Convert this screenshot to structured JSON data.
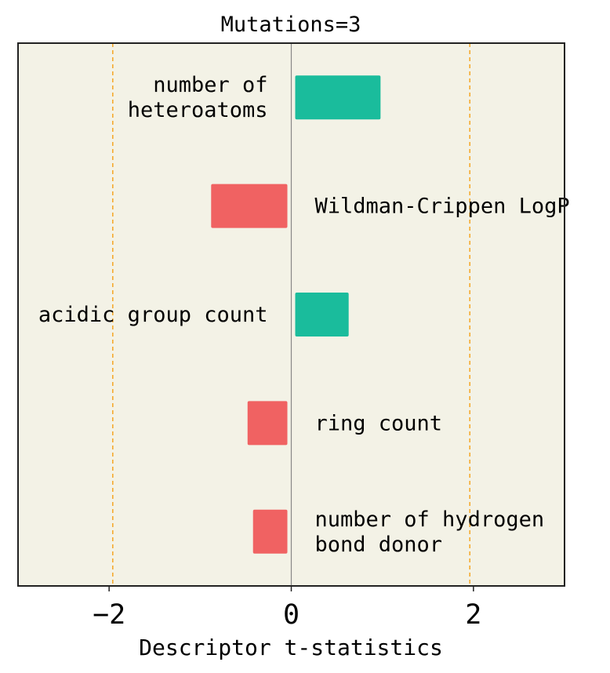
{
  "chart_data": {
    "type": "bar",
    "orientation": "horizontal",
    "title": "Mutations=3",
    "xlabel": "Descriptor t-statistics",
    "ylabel": "",
    "xlim": [
      -3,
      3
    ],
    "xticks": [
      -2,
      0,
      2
    ],
    "xtick_labels": [
      "−2",
      "0",
      "2"
    ],
    "reference_lines": [
      -1.96,
      1.96
    ],
    "grid": false,
    "categories": [
      [
        "number of",
        "heteroatoms"
      ],
      [
        "Wildman-Crippen LogP"
      ],
      [
        "acidic group count"
      ],
      [
        "ring count"
      ],
      [
        "number of hydrogen",
        "bond donor"
      ]
    ],
    "values": [
      0.98,
      -0.88,
      0.63,
      -0.48,
      -0.42
    ],
    "colors": {
      "positive": "#1abc9c",
      "negative": "#f06262",
      "reference_line": "#f5a623",
      "zero_line": "#888888",
      "plot_background": "#f3f2e6",
      "frame": "#222222"
    }
  }
}
